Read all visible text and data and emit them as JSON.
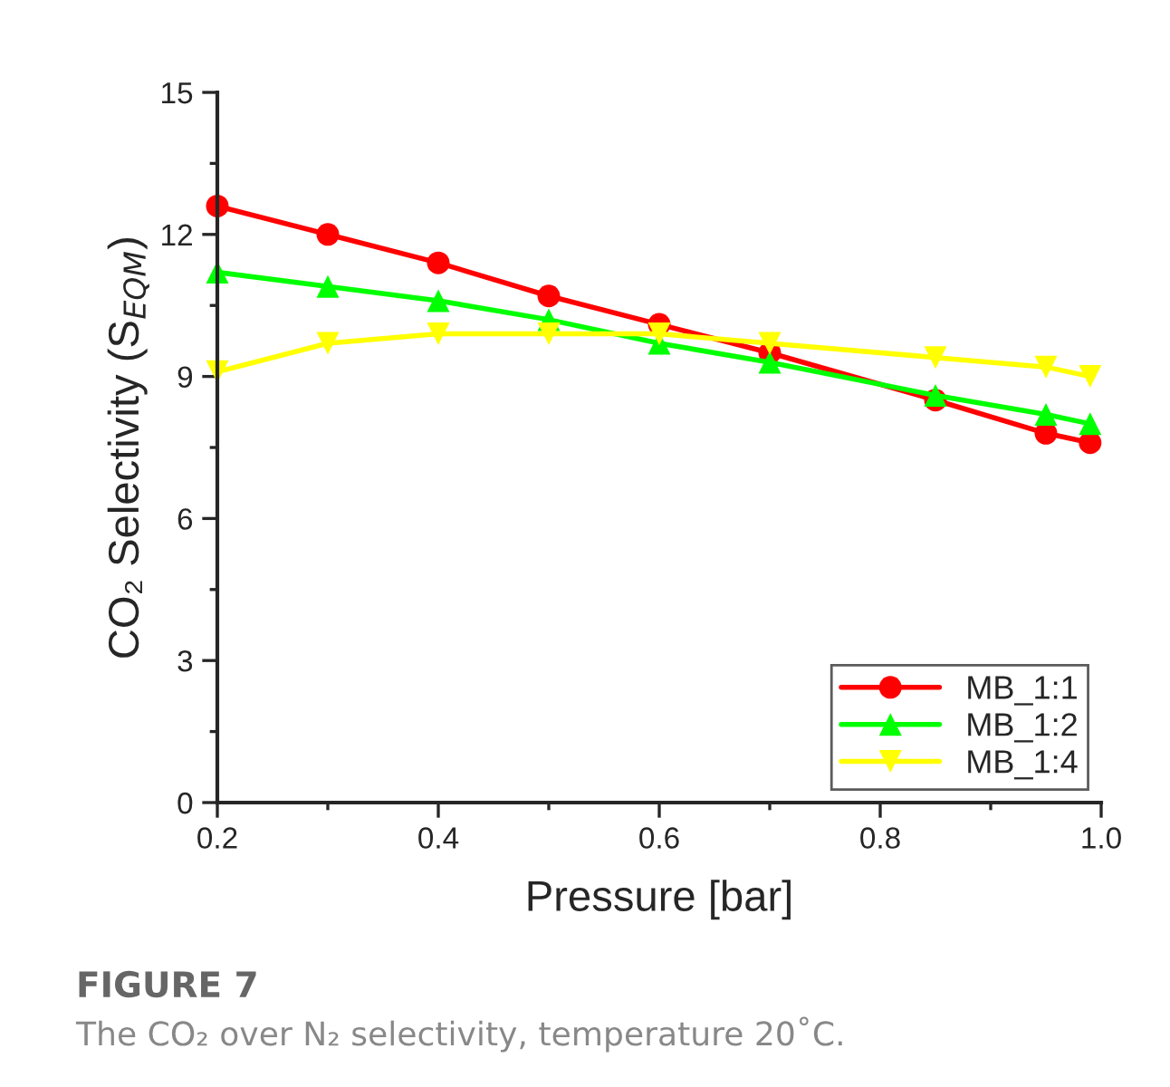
{
  "chart_data": {
    "type": "line",
    "xlabel": "Pressure [bar]",
    "ylabel": "CO₂ Selectivity (S$_{EQM}$)",
    "x": [
      0.2,
      0.3,
      0.4,
      0.5,
      0.6,
      0.7,
      0.85,
      0.95,
      0.99
    ],
    "series": [
      {
        "name": "MB_1:1",
        "color": "#ff0000",
        "marker": "circle",
        "values": [
          12.6,
          12.0,
          11.4,
          10.7,
          10.1,
          9.5,
          8.5,
          7.8,
          7.6
        ]
      },
      {
        "name": "MB_1:2",
        "color": "#00ff00",
        "marker": "triangle",
        "values": [
          11.2,
          10.9,
          10.6,
          10.2,
          9.7,
          9.3,
          8.6,
          8.2,
          8.0
        ]
      },
      {
        "name": "MB_1:4",
        "color": "#ffff00",
        "marker": "triangle_down",
        "values": [
          9.1,
          9.7,
          9.9,
          9.9,
          9.9,
          9.7,
          9.4,
          9.2,
          9.0
        ]
      }
    ],
    "xlim": [
      0.2,
      1.0
    ],
    "xticks": [
      0.2,
      0.4,
      0.6,
      0.8,
      {
        "value": 1,
        "label": "1.0"
      }
    ],
    "ylim": [
      0,
      15
    ],
    "yticks": [
      0,
      3,
      6,
      9,
      12,
      15
    ],
    "legend": "bottom right",
    "grid": false,
    "annotations": [
      "FIGURE 7",
      "The CO₂ over N₂ selectivity, temperature 20˚C."
    ]
  }
}
